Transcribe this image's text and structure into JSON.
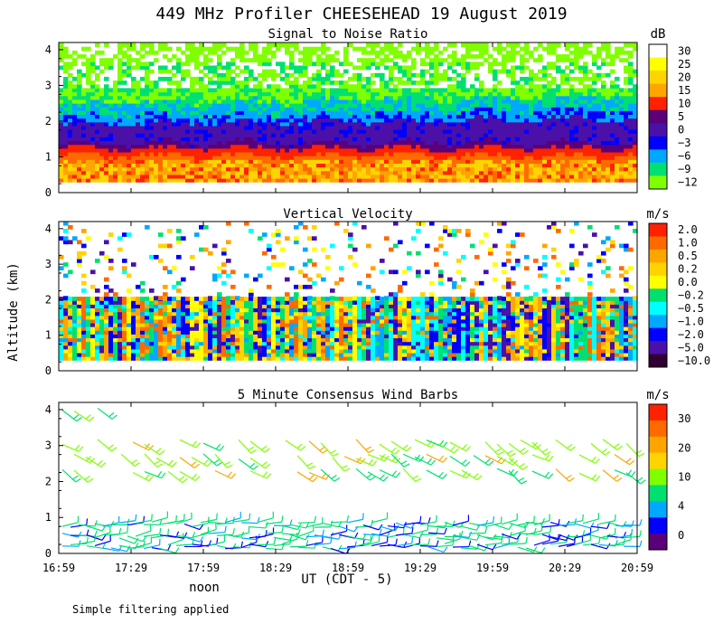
{
  "title": "449 MHz Profiler CHEESEHEAD 19 August 2019",
  "ylabel": "Altitude (km)",
  "xlabel": "UT (CDT - 5)",
  "noon_label": "noon",
  "footer_note": "Simple filtering applied",
  "x_ticks": [
    "16:59",
    "17:29",
    "17:59",
    "18:29",
    "18:59",
    "19:29",
    "19:59",
    "20:29",
    "20:59"
  ],
  "y_ticks": [
    "0",
    "1",
    "2",
    "3",
    "4"
  ],
  "colors": {
    "white": "#ffffff",
    "yellow": "#ffff00",
    "gold": "#ffd400",
    "orange": "#ffa500",
    "red_orange": "#ff6a00",
    "red": "#ff2200",
    "dark_purple": "#5a0078",
    "purple": "#4a10a8",
    "blue": "#0000ff",
    "sky": "#00a8ff",
    "cyan": "#00ffff",
    "green": "#00e070",
    "lime": "#80ff00",
    "black_purple": "#300030"
  },
  "chart_data": [
    {
      "type": "heatmap",
      "title": "Signal to Noise Ratio",
      "units": "dB",
      "ylim": [
        0,
        4.2
      ],
      "colorbar_ticks": [
        "30",
        "25",
        "20",
        "15",
        "10",
        "5",
        "0",
        "−3",
        "−6",
        "−9",
        "−12"
      ],
      "colorbar_colors": [
        "#ffffff",
        "#ffff00",
        "#ffd400",
        "#ffa500",
        "#ff2200",
        "#5a0078",
        "#4a10a8",
        "#0000ff",
        "#00a8ff",
        "#00e070",
        "#80ff00"
      ],
      "layers": [
        {
          "altitude_km": [
            0.3,
            0.85
          ],
          "snr_db": 20
        },
        {
          "altitude_km": [
            0.85,
            1.2
          ],
          "snr_db": 10
        },
        {
          "altitude_km": [
            1.2,
            1.9
          ],
          "snr_db": 0
        },
        {
          "altitude_km": [
            1.9,
            2.4
          ],
          "snr_db": -6
        },
        {
          "altitude_km": [
            2.4,
            3.4
          ],
          "snr_db": -12
        },
        {
          "altitude_km": [
            3.4,
            4.2
          ],
          "snr_db": -9
        }
      ]
    },
    {
      "type": "heatmap",
      "title": "Vertical Velocity",
      "units": "m/s",
      "ylim": [
        0,
        4.2
      ],
      "colorbar_ticks": [
        "2.0",
        "1.0",
        "0.5",
        "0.2",
        "0.0",
        "−0.2",
        "−0.5",
        "−1.0",
        "−2.0",
        "−5.0",
        "−10.0"
      ],
      "colorbar_colors": [
        "#ff2200",
        "#ff6a00",
        "#ffa500",
        "#ffd400",
        "#ffff00",
        "#00e070",
        "#00ffff",
        "#00a8ff",
        "#0000ff",
        "#4a10a8",
        "#300030"
      ],
      "data_coverage_km": [
        0.3,
        2.0
      ]
    },
    {
      "type": "scatter",
      "title": "5 Minute Consensus Wind Barbs",
      "units": "m/s",
      "ylim": [
        0,
        4.2
      ],
      "colorbar_ticks": [
        "30",
        "20",
        "10",
        "4",
        "0"
      ],
      "colorbar_colors": [
        "#ff2200",
        "#ff6a00",
        "#ffa500",
        "#ffd400",
        "#80ff00",
        "#00e070",
        "#00a8ff",
        "#0000ff",
        "#5a0078"
      ],
      "barb_levels_km": [
        0.2,
        0.5,
        0.8,
        2.3,
        2.7,
        3.1,
        4.0
      ]
    }
  ]
}
